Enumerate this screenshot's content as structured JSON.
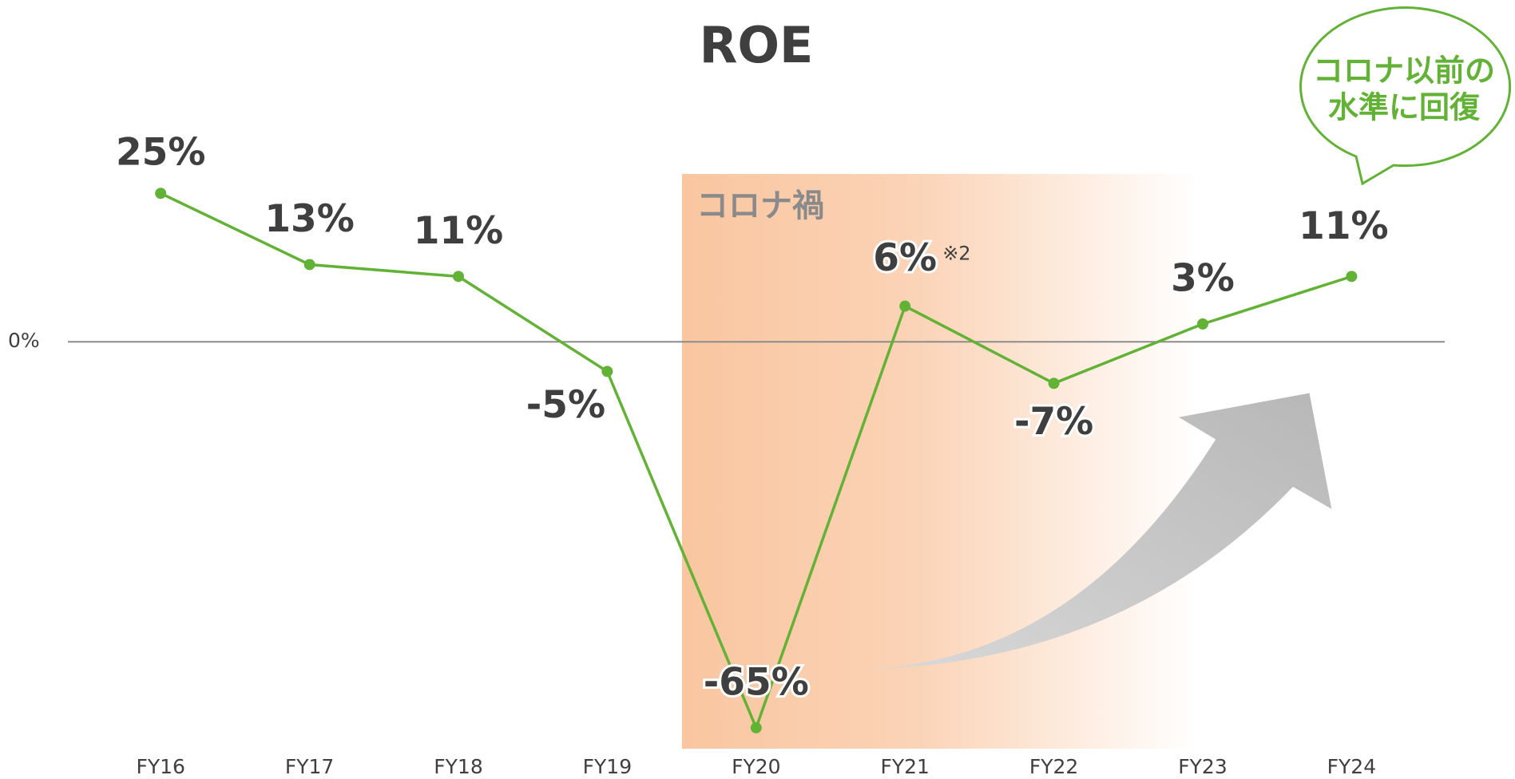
{
  "chart_data": {
    "type": "line",
    "title": "ROE",
    "categories": [
      "FY16",
      "FY17",
      "FY18",
      "FY19",
      "FY20",
      "FY21",
      "FY22",
      "FY23",
      "FY24"
    ],
    "series": [
      {
        "name": "ROE",
        "color": "#62b236",
        "values": [
          25,
          13,
          11,
          -5,
          -65,
          6,
          -7,
          3,
          11
        ],
        "value_labels": [
          "25%",
          "13%",
          "11%",
          "-5%",
          "-65%",
          "6%",
          "-7%",
          "3%",
          "11%"
        ]
      }
    ],
    "ylim": [
      -70,
      30
    ],
    "yticks": [
      {
        "value": 0,
        "label": "0%"
      }
    ],
    "annotations": {
      "period": "コロナ禍",
      "note": "※2",
      "bubble": [
        "コロナ以前の",
        "水準に回復"
      ]
    }
  }
}
